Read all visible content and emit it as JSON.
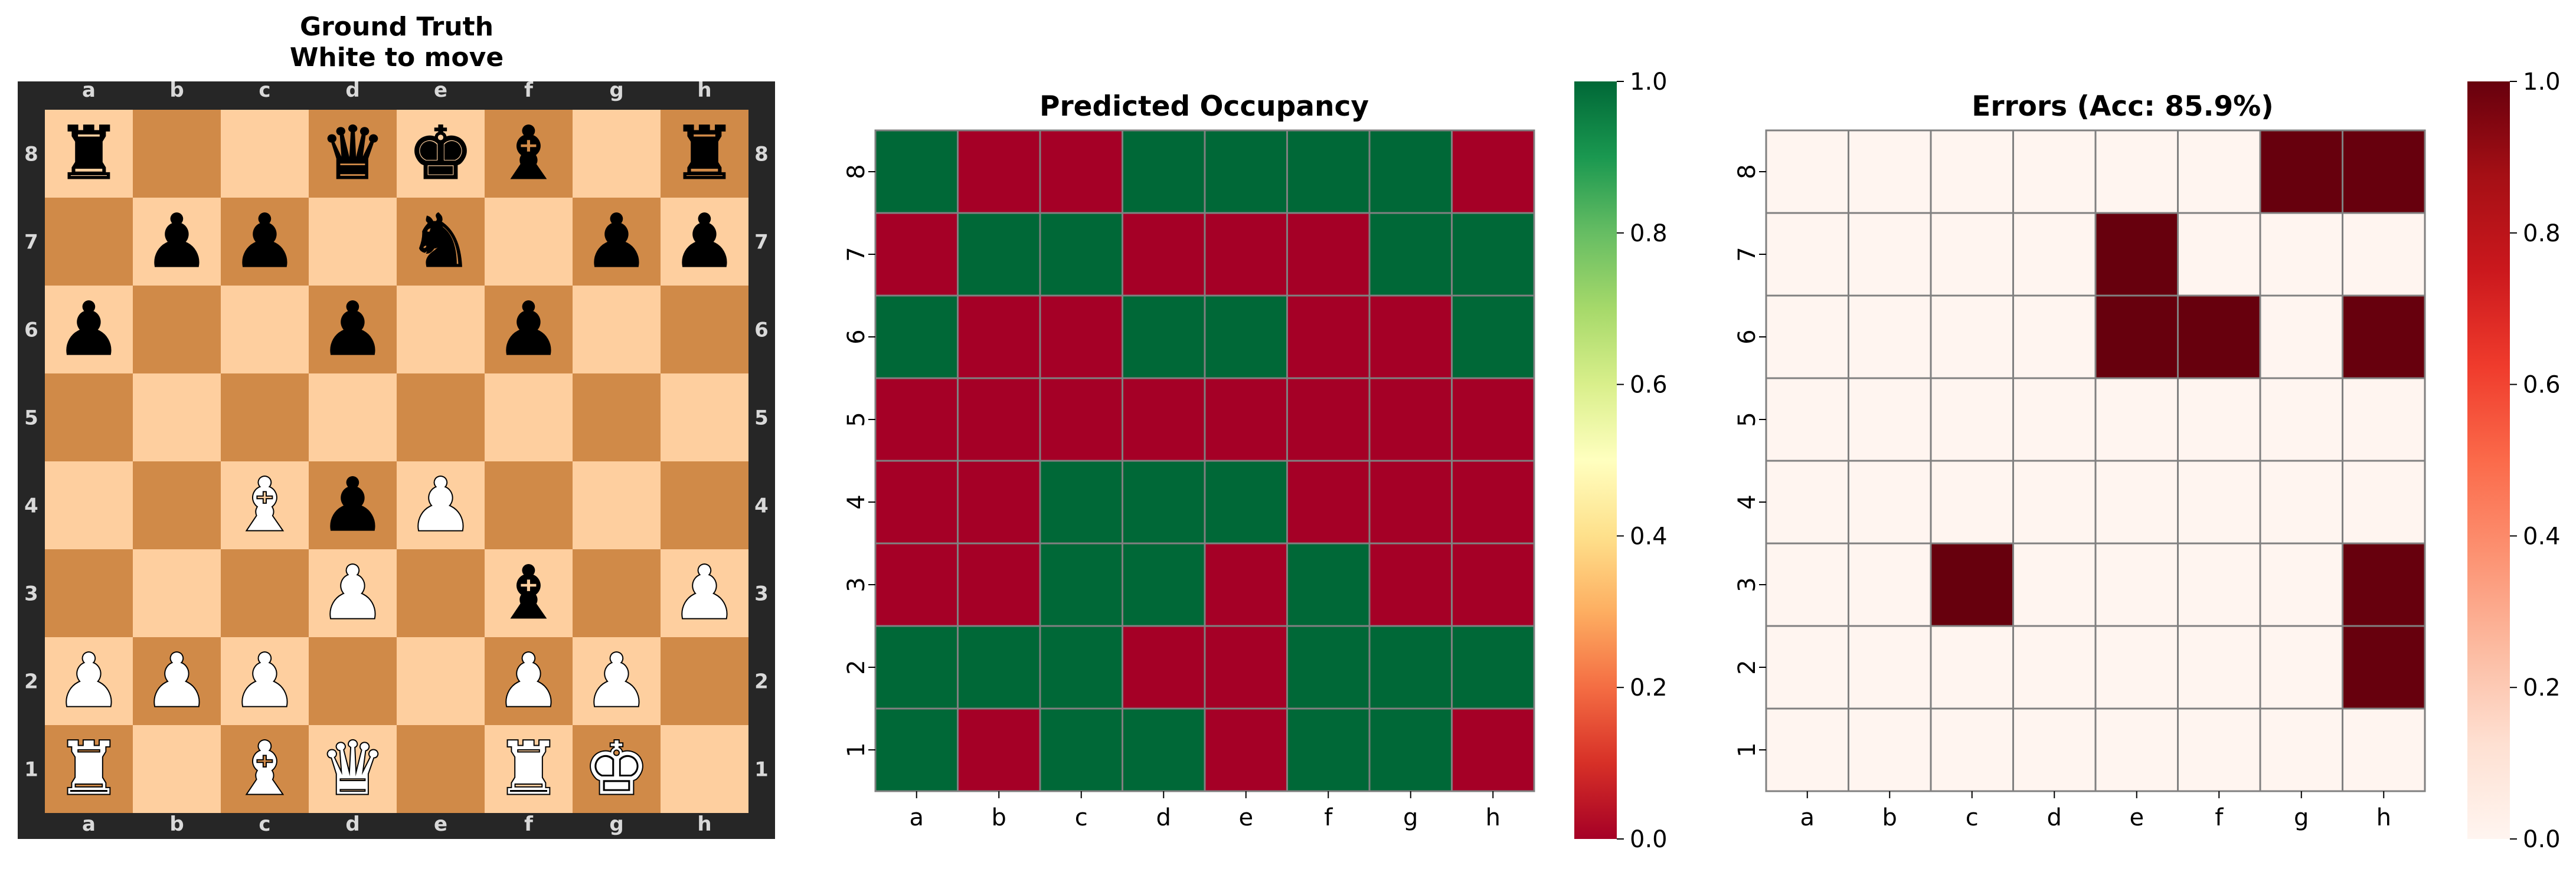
{
  "chart_data": [
    {
      "type": "board",
      "title_line1": "Ground Truth",
      "title_line2": "White to move",
      "files": [
        "a",
        "b",
        "c",
        "d",
        "e",
        "f",
        "g",
        "h"
      ],
      "ranks": [
        "8",
        "7",
        "6",
        "5",
        "4",
        "3",
        "2",
        "1"
      ],
      "rows": [
        [
          "r",
          "",
          "",
          "q",
          "k",
          "b",
          "",
          "r"
        ],
        [
          "",
          "p",
          "p",
          "",
          "n",
          "",
          "p",
          "p"
        ],
        [
          "p",
          "",
          "",
          "p",
          "",
          "p",
          "",
          ""
        ],
        [
          "",
          "",
          "",
          "",
          "",
          "",
          "",
          ""
        ],
        [
          "",
          "",
          "B",
          "p",
          "P",
          "",
          "",
          ""
        ],
        [
          "",
          "",
          "",
          "P",
          "",
          "b",
          "",
          "P"
        ],
        [
          "P",
          "P",
          "P",
          "",
          "",
          "P",
          "P",
          ""
        ],
        [
          "R",
          "",
          "B",
          "Q",
          "",
          "R",
          "K",
          ""
        ]
      ],
      "colors": {
        "light": "#fecf9f",
        "dark": "#d08a48",
        "frame": "#262626",
        "coord": "#d9d9d9"
      }
    },
    {
      "type": "heatmap",
      "title": "Predicted Occupancy",
      "x_categories": [
        "a",
        "b",
        "c",
        "d",
        "e",
        "f",
        "g",
        "h"
      ],
      "y_categories": [
        "8",
        "7",
        "6",
        "5",
        "4",
        "3",
        "2",
        "1"
      ],
      "values": [
        [
          1,
          0,
          0,
          1,
          1,
          1,
          1,
          0
        ],
        [
          0,
          1,
          1,
          0,
          0,
          0,
          1,
          1
        ],
        [
          1,
          0,
          0,
          1,
          1,
          0,
          0,
          1
        ],
        [
          0,
          0,
          0,
          0,
          0,
          0,
          0,
          0
        ],
        [
          0,
          0,
          1,
          1,
          1,
          0,
          0,
          0
        ],
        [
          0,
          0,
          1,
          1,
          0,
          1,
          0,
          0
        ],
        [
          1,
          1,
          1,
          0,
          0,
          1,
          1,
          1
        ],
        [
          1,
          0,
          1,
          1,
          0,
          1,
          1,
          0
        ]
      ],
      "vmin": 0,
      "vmax": 1,
      "colormap": "RdYlGn",
      "colorbar_ticks": [
        "0.0",
        "0.2",
        "0.4",
        "0.6",
        "0.8",
        "1.0"
      ]
    },
    {
      "type": "heatmap",
      "title": "Errors (Acc: 85.9%)",
      "x_categories": [
        "a",
        "b",
        "c",
        "d",
        "e",
        "f",
        "g",
        "h"
      ],
      "y_categories": [
        "8",
        "7",
        "6",
        "5",
        "4",
        "3",
        "2",
        "1"
      ],
      "values": [
        [
          0,
          0,
          0,
          0,
          0,
          0,
          1,
          1
        ],
        [
          0,
          0,
          0,
          0,
          1,
          0,
          0,
          0
        ],
        [
          0,
          0,
          0,
          0,
          1,
          1,
          0,
          1
        ],
        [
          0,
          0,
          0,
          0,
          0,
          0,
          0,
          0
        ],
        [
          0,
          0,
          0,
          0,
          0,
          0,
          0,
          0
        ],
        [
          0,
          0,
          1,
          0,
          0,
          0,
          0,
          1
        ],
        [
          0,
          0,
          0,
          0,
          0,
          0,
          0,
          1
        ],
        [
          0,
          0,
          0,
          0,
          0,
          0,
          0,
          0
        ]
      ],
      "vmin": 0,
      "vmax": 1,
      "colormap": "Reds",
      "colorbar_ticks": [
        "0.0",
        "0.2",
        "0.4",
        "0.6",
        "0.8",
        "1.0"
      ]
    }
  ]
}
